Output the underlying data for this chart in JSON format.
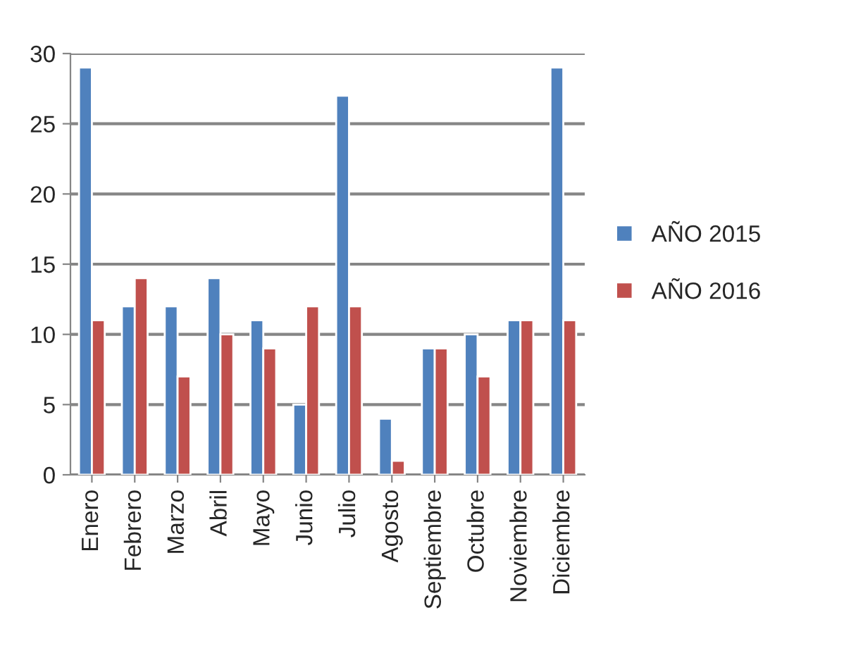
{
  "chart_data": {
    "type": "bar",
    "categories": [
      "Enero",
      "Febrero",
      "Marzo",
      "Abril",
      "Mayo",
      "Junio",
      "Julio",
      "Agosto",
      "Septiembre",
      "Octubre",
      "Noviembre",
      "Diciembre"
    ],
    "series": [
      {
        "name": "AÑO 2015",
        "color": "#4f81bd",
        "values": [
          29,
          12,
          12,
          14,
          11,
          5,
          27,
          4,
          9,
          10,
          11,
          29
        ]
      },
      {
        "name": "AÑO 2016",
        "color": "#c0504d",
        "values": [
          11,
          14,
          7,
          10,
          9,
          12,
          12,
          1,
          9,
          7,
          11,
          11
        ]
      }
    ],
    "ylim": [
      0,
      30
    ],
    "yticks": [
      0,
      5,
      10,
      15,
      20,
      25,
      30
    ],
    "grid": "y",
    "legend": "right"
  }
}
